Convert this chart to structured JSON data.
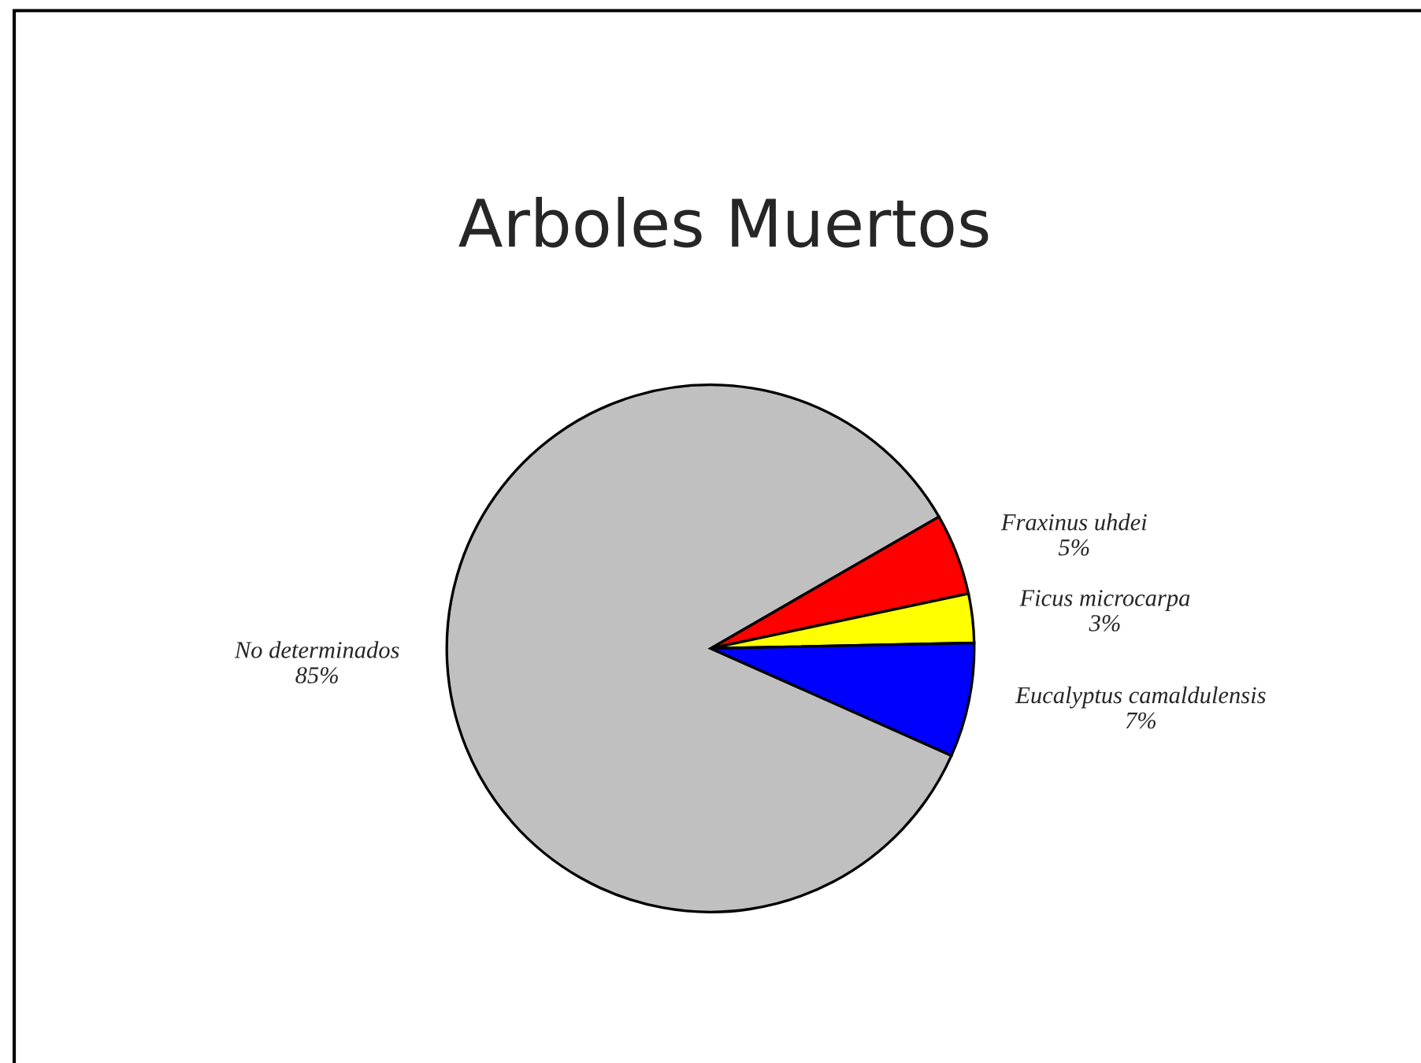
{
  "chart_data": {
    "type": "pie",
    "title": "Arboles Muertos",
    "categories": [
      "Fraxinus uhdei",
      "Ficus microcarpa",
      "Eucalyptus camaldulensis",
      "No determinados"
    ],
    "values": [
      5,
      3,
      7,
      85
    ],
    "value_labels": [
      "5%",
      "3%",
      "7%",
      "85%"
    ],
    "colors": [
      "#ff0000",
      "#ffff00",
      "#0000ff",
      "#c0c0c0"
    ],
    "legend": false
  }
}
